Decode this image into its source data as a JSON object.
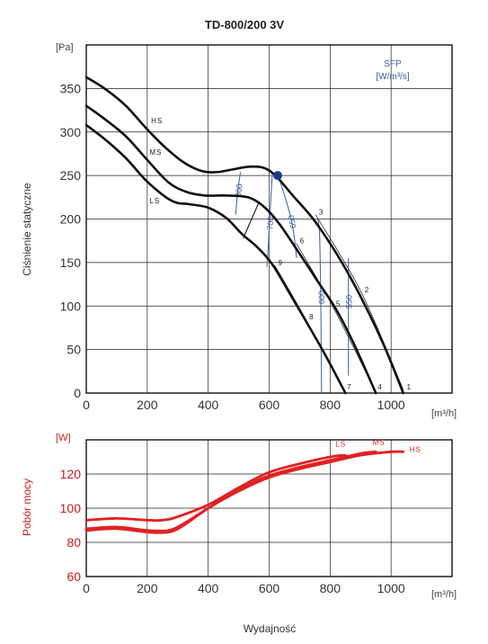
{
  "chart_data": [
    {
      "type": "line",
      "title": "TD-800/200 3V",
      "ylabel": "Ciśnienie statyczne",
      "yunit": "[Pa]",
      "xunit": "[m³/h]",
      "xlim": [
        0,
        1200
      ],
      "ylim": [
        0,
        400
      ],
      "xticks": [
        0,
        200,
        400,
        600,
        800,
        1000
      ],
      "yticks": [
        0,
        50,
        100,
        150,
        200,
        250,
        300,
        350
      ],
      "grid": true,
      "series": [
        {
          "name": "HS",
          "x": [
            0,
            60,
            130,
            200,
            260,
            320,
            380,
            430,
            480,
            530,
            580,
            620,
            680,
            740,
            800,
            860,
            920,
            980,
            1040
          ],
          "y": [
            363,
            350,
            330,
            303,
            282,
            265,
            255,
            254,
            257,
            260,
            259,
            250,
            226,
            202,
            172,
            137,
            97,
            52,
            0
          ]
        },
        {
          "name": "MS",
          "x": [
            0,
            60,
            130,
            200,
            270,
            330,
            390,
            460,
            530,
            580,
            630,
            700,
            760,
            820,
            880,
            950
          ],
          "y": [
            330,
            315,
            295,
            268,
            242,
            231,
            227,
            227,
            225,
            215,
            196,
            160,
            128,
            96,
            55,
            0
          ]
        },
        {
          "name": "LS",
          "x": [
            0,
            60,
            130,
            200,
            280,
            340,
            400,
            460,
            510,
            560,
            610,
            670,
            730,
            790,
            850
          ],
          "y": [
            308,
            292,
            270,
            243,
            221,
            217,
            213,
            201,
            183,
            168,
            148,
            113,
            77,
            40,
            0
          ]
        }
      ],
      "curve_labels": [
        "HS",
        "MS",
        "LS"
      ],
      "operating_point": {
        "x": 628,
        "y": 250
      },
      "sfp_title": "SFP",
      "sfp_unit": "[W/m³/s]",
      "sfp_isolines": [
        {
          "label": "800",
          "points": [
            [
              490,
              205
            ],
            [
              495,
              225
            ],
            [
              500,
              240
            ],
            [
              506,
              254
            ]
          ]
        },
        {
          "label": "700",
          "points": [
            [
              593,
              145
            ],
            [
              598,
              175
            ],
            [
              604,
              215
            ],
            [
              610,
              250
            ]
          ]
        },
        {
          "label": "650",
          "points": [
            [
              690,
              155
            ],
            [
              680,
              185
            ],
            [
              665,
              210
            ],
            [
              630,
              250
            ]
          ]
        },
        {
          "label": "600",
          "points": [
            [
              772,
              0
            ],
            [
              770,
              80
            ],
            [
              768,
              140
            ],
            [
              765,
              185
            ],
            [
              760,
              200
            ]
          ]
        },
        {
          "label": "550",
          "points": [
            [
              860,
              20
            ],
            [
              860,
              80
            ],
            [
              860,
              130
            ],
            [
              860,
              155
            ]
          ]
        }
      ],
      "operating_markers": [
        {
          "label": "1",
          "x": 1058,
          "y": 4
        },
        {
          "label": "2",
          "x": 920,
          "y": 116
        },
        {
          "label": "3",
          "x": 770,
          "y": 205
        },
        {
          "label": "4",
          "x": 963,
          "y": 4
        },
        {
          "label": "5",
          "x": 826,
          "y": 100
        },
        {
          "label": "6",
          "x": 707,
          "y": 172
        },
        {
          "label": "7",
          "x": 862,
          "y": 4
        },
        {
          "label": "8",
          "x": 738,
          "y": 85
        },
        {
          "label": "9",
          "x": 636,
          "y": 147
        }
      ]
    },
    {
      "type": "line",
      "ylabel": "Pobór mocy",
      "yunit": "[W]",
      "xunit": "[m³/h]",
      "xlabel": "Wydajność",
      "xlim": [
        0,
        1200
      ],
      "ylim": [
        60,
        140
      ],
      "xticks": [
        0,
        200,
        400,
        600,
        800,
        1000
      ],
      "yticks": [
        60,
        80,
        100,
        120
      ],
      "grid": true,
      "series": [
        {
          "name": "LS",
          "x": [
            0,
            100,
            200,
            250,
            300,
            400,
            500,
            600,
            700,
            800,
            850
          ],
          "y": [
            93,
            94,
            93,
            93,
            95,
            102,
            112,
            121,
            126,
            130,
            131
          ]
        },
        {
          "name": "MS",
          "x": [
            0,
            100,
            200,
            270,
            320,
            400,
            500,
            600,
            700,
            800,
            900,
            950
          ],
          "y": [
            88,
            89,
            87,
            87,
            91,
            100,
            111,
            119,
            124,
            128,
            132,
            133
          ]
        },
        {
          "name": "HS",
          "x": [
            0,
            100,
            200,
            270,
            320,
            400,
            500,
            600,
            700,
            800,
            900,
            1000,
            1040
          ],
          "y": [
            87,
            88,
            86,
            86,
            90,
            100,
            110,
            118,
            123,
            127,
            131,
            133,
            133
          ]
        }
      ],
      "curve_labels": [
        "LS",
        "MS",
        "HS"
      ]
    }
  ]
}
